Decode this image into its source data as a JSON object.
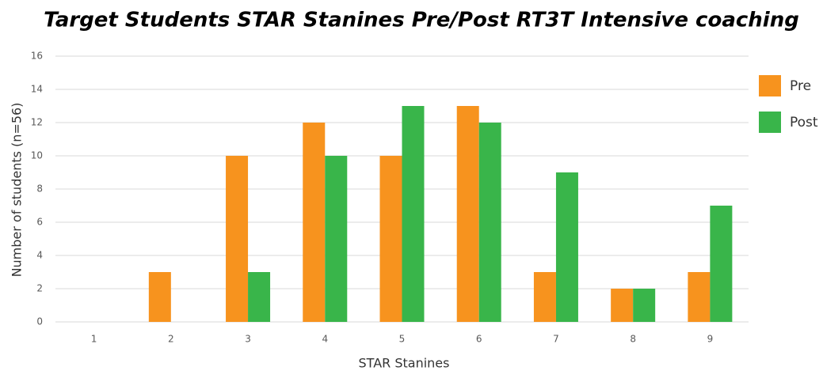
{
  "chart_data": {
    "type": "bar",
    "title": "Target Students STAR Stanines Pre/Post RT3T Intensive coaching",
    "x_label": "STAR Stanines",
    "y_label": "Number of students (n=56)",
    "categories": [
      "1",
      "2",
      "3",
      "4",
      "5",
      "6",
      "7",
      "8",
      "9"
    ],
    "series": [
      {
        "name": "Pre",
        "color": "#f7931e",
        "values": [
          0,
          3,
          10,
          12,
          10,
          13,
          3,
          2,
          3
        ]
      },
      {
        "name": "Post",
        "color": "#39b54a",
        "values": [
          0,
          0,
          3,
          10,
          13,
          12,
          9,
          2,
          7
        ]
      }
    ],
    "ylim": [
      0,
      16
    ],
    "yticks": [
      0,
      2,
      4,
      6,
      8,
      10,
      12,
      14,
      16
    ],
    "grid": true,
    "legend": "right"
  }
}
